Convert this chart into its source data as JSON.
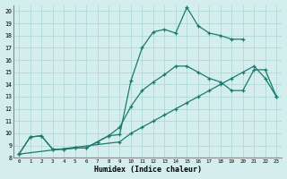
{
  "xlabel": "Humidex (Indice chaleur)",
  "ylabel": "",
  "bg_color": "#d4eeee",
  "grid_color": "#aad4d4",
  "line_color": "#1a7a6e",
  "xlim": [
    -0.5,
    23.5
  ],
  "ylim": [
    8,
    20.5
  ],
  "xticks": [
    0,
    1,
    2,
    3,
    4,
    5,
    6,
    7,
    8,
    9,
    10,
    11,
    12,
    13,
    14,
    15,
    16,
    17,
    18,
    19,
    20,
    21,
    22,
    23
  ],
  "yticks": [
    8,
    9,
    10,
    11,
    12,
    13,
    14,
    15,
    16,
    17,
    18,
    19,
    20
  ],
  "line1": [
    [
      0,
      8.3
    ],
    [
      1,
      9.7
    ],
    [
      2,
      9.8
    ],
    [
      3,
      8.7
    ],
    [
      4,
      8.7
    ],
    [
      5,
      8.8
    ],
    [
      6,
      8.8
    ],
    [
      7,
      9.3
    ],
    [
      8,
      9.8
    ],
    [
      9,
      9.9
    ],
    [
      10,
      14.3
    ],
    [
      11,
      17.0
    ],
    [
      12,
      18.3
    ],
    [
      13,
      18.5
    ],
    [
      14,
      18.2
    ],
    [
      15,
      20.3
    ],
    [
      16,
      18.8
    ],
    [
      17,
      18.2
    ],
    [
      18,
      18.0
    ],
    [
      19,
      17.7
    ],
    [
      20,
      17.7
    ]
  ],
  "line2": [
    [
      0,
      8.3
    ],
    [
      1,
      9.7
    ],
    [
      2,
      9.8
    ],
    [
      3,
      8.7
    ],
    [
      4,
      8.7
    ],
    [
      5,
      8.8
    ],
    [
      6,
      8.8
    ],
    [
      7,
      9.3
    ],
    [
      8,
      9.8
    ],
    [
      9,
      10.5
    ],
    [
      10,
      12.2
    ],
    [
      11,
      13.5
    ],
    [
      12,
      14.2
    ],
    [
      13,
      14.8
    ],
    [
      14,
      15.5
    ],
    [
      15,
      15.5
    ],
    [
      16,
      15.0
    ],
    [
      17,
      14.5
    ],
    [
      18,
      14.2
    ],
    [
      19,
      13.5
    ],
    [
      20,
      13.5
    ],
    [
      21,
      15.2
    ],
    [
      22,
      15.2
    ],
    [
      23,
      13.0
    ]
  ],
  "line3": [
    [
      0,
      8.3
    ],
    [
      9,
      9.3
    ],
    [
      10,
      10.0
    ],
    [
      11,
      10.5
    ],
    [
      12,
      11.0
    ],
    [
      13,
      11.5
    ],
    [
      14,
      12.0
    ],
    [
      15,
      12.5
    ],
    [
      16,
      13.0
    ],
    [
      17,
      13.5
    ],
    [
      18,
      14.0
    ],
    [
      19,
      14.5
    ],
    [
      20,
      15.0
    ],
    [
      21,
      15.5
    ],
    [
      22,
      14.5
    ],
    [
      23,
      13.0
    ]
  ],
  "lw": 0.9,
  "ms": 3.5
}
